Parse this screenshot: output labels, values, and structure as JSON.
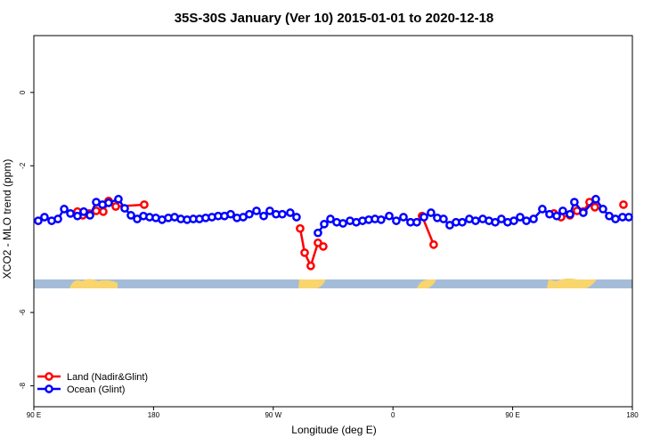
{
  "chart_data": {
    "type": "line",
    "title": "35S-30S January (Ver 10)   2015-01-01 to 2020-12-18",
    "x_label": "Longitude (deg E)",
    "y_label": "XCO2 - MLO trend (ppm)",
    "xlim": [
      90,
      540
    ],
    "xticks": [
      {
        "value": 90,
        "label": "90 E"
      },
      180,
      {
        "value": 270,
        "label": "90 W"
      },
      {
        "value": 360,
        "label": "0"
      },
      {
        "value": 450,
        "label": "90 E"
      },
      {
        "value": 540,
        "label": "180"
      }
    ],
    "ylim": [
      -8.57,
      1.55
    ],
    "yticks": [
      0,
      -2,
      -6,
      -8
    ],
    "legend": "bottom-left",
    "series": [
      {
        "name": "Land (Nadir&Glint)",
        "color": "#ff0000",
        "x": [
          122.8,
          126.8,
          131.5,
          136.9,
          142.2,
          146.2,
          151.6,
          173.0,
          null,
          290.2,
          293.6,
          298.2,
          303.6,
          307.6,
          null,
          381.9,
          390.6,
          null,
          481.0,
          486.4,
          493.1,
          498.4,
          503.1,
          507.8,
          511.8,
          null,
          533.3
        ],
        "values": [
          -3.25,
          -3.35,
          -3.3,
          -3.23,
          -3.25,
          -2.96,
          -3.11,
          -3.06,
          null,
          -3.71,
          -4.37,
          -4.73,
          -4.1,
          -4.2,
          null,
          -3.37,
          -4.15,
          null,
          -3.3,
          -3.4,
          -3.35,
          -3.23,
          -3.25,
          -2.99,
          -3.13,
          null,
          -3.06
        ]
      },
      {
        "name": "Ocean (Glint)",
        "color": "#0000ff",
        "x": [
          93.3,
          98.0,
          103.4,
          108.1,
          112.8,
          117.5,
          122.8,
          127.5,
          132.2,
          136.9,
          141.6,
          146.2,
          153.6,
          158.3,
          163.0,
          167.7,
          172.4,
          177.0,
          181.7,
          186.4,
          191.1,
          195.8,
          200.5,
          205.2,
          209.9,
          214.5,
          219.2,
          223.9,
          228.6,
          233.3,
          238.0,
          242.7,
          247.4,
          252.0,
          257.4,
          262.8,
          267.4,
          272.1,
          276.8,
          282.8,
          287.5,
          null,
          303.6,
          308.3,
          313.0,
          317.7,
          322.4,
          327.7,
          332.4,
          337.1,
          341.8,
          346.5,
          351.1,
          357.2,
          362.5,
          367.9,
          373.2,
          377.9,
          383.3,
          388.6,
          393.3,
          398.0,
          402.7,
          407.4,
          412.1,
          417.4,
          422.1,
          427.5,
          432.2,
          436.9,
          441.5,
          446.2,
          450.9,
          455.6,
          460.3,
          465.7,
          472.3,
          477.7,
          483.1,
          487.7,
          493.1,
          496.4,
          503.1,
          512.5,
          517.9,
          522.6,
          527.3,
          532.6,
          537.3
        ],
        "values": [
          -3.5,
          -3.4,
          -3.5,
          -3.45,
          -3.18,
          -3.3,
          -3.37,
          -3.25,
          -3.35,
          -2.99,
          -3.06,
          -3.01,
          -2.91,
          -3.16,
          -3.35,
          -3.45,
          -3.37,
          -3.4,
          -3.42,
          -3.47,
          -3.42,
          -3.4,
          -3.45,
          -3.47,
          -3.45,
          -3.45,
          -3.42,
          -3.4,
          -3.37,
          -3.37,
          -3.32,
          -3.42,
          -3.4,
          -3.32,
          -3.23,
          -3.37,
          -3.23,
          -3.32,
          -3.32,
          -3.28,
          -3.4,
          null,
          -3.83,
          -3.59,
          -3.45,
          -3.54,
          -3.57,
          -3.5,
          -3.54,
          -3.5,
          -3.47,
          -3.45,
          -3.47,
          -3.37,
          -3.5,
          -3.4,
          -3.54,
          -3.54,
          -3.4,
          -3.28,
          -3.42,
          -3.45,
          -3.62,
          -3.54,
          -3.54,
          -3.45,
          -3.5,
          -3.45,
          -3.5,
          -3.54,
          -3.45,
          -3.54,
          -3.5,
          -3.4,
          -3.5,
          -3.45,
          -3.18,
          -3.32,
          -3.37,
          -3.23,
          -3.32,
          -2.99,
          -3.28,
          -2.91,
          -3.18,
          -3.37,
          -3.45,
          -3.4,
          -3.4
        ]
      }
    ]
  }
}
